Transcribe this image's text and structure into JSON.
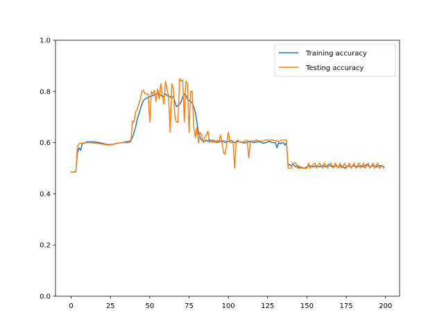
{
  "chart_data": {
    "type": "line",
    "title": "",
    "xlabel": "",
    "ylabel": "",
    "xlim": [
      -9.95,
      208.95
    ],
    "ylim": [
      0.0,
      1.0
    ],
    "xticks": [
      0,
      25,
      50,
      75,
      100,
      125,
      150,
      175,
      200
    ],
    "yticks": [
      0.0,
      0.2,
      0.4,
      0.6,
      0.8,
      1.0
    ],
    "xtick_labels": [
      "0",
      "25",
      "50",
      "75",
      "100",
      "125",
      "150",
      "175",
      "200"
    ],
    "ytick_labels": [
      "0.0",
      "0.2",
      "0.4",
      "0.6",
      "0.8",
      "1.0"
    ],
    "grid": false,
    "legend_position": "top-right",
    "series": [
      {
        "name": "Training accuracy",
        "color": "#1f77b4",
        "points": [
          [
            0,
            0.485
          ],
          [
            1,
            0.485
          ],
          [
            2,
            0.485
          ],
          [
            3,
            0.49
          ],
          [
            4,
            0.56
          ],
          [
            5,
            0.58
          ],
          [
            6,
            0.57
          ],
          [
            7,
            0.595
          ],
          [
            8,
            0.598
          ],
          [
            9,
            0.6
          ],
          [
            10,
            0.603
          ],
          [
            12,
            0.603
          ],
          [
            15,
            0.603
          ],
          [
            18,
            0.6
          ],
          [
            20,
            0.597
          ],
          [
            22,
            0.594
          ],
          [
            24,
            0.592
          ],
          [
            26,
            0.593
          ],
          [
            28,
            0.596
          ],
          [
            30,
            0.598
          ],
          [
            32,
            0.6
          ],
          [
            35,
            0.603
          ],
          [
            37,
            0.605
          ],
          [
            38,
            0.61
          ],
          [
            39,
            0.62
          ],
          [
            40,
            0.64
          ],
          [
            41,
            0.66
          ],
          [
            42,
            0.69
          ],
          [
            43,
            0.71
          ],
          [
            44,
            0.73
          ],
          [
            45,
            0.75
          ],
          [
            46,
            0.765
          ],
          [
            47,
            0.77
          ],
          [
            48,
            0.775
          ],
          [
            49,
            0.775
          ],
          [
            50,
            0.78
          ],
          [
            51,
            0.78
          ],
          [
            52,
            0.785
          ],
          [
            53,
            0.785
          ],
          [
            54,
            0.79
          ],
          [
            55,
            0.79
          ],
          [
            56,
            0.79
          ],
          [
            57,
            0.785
          ],
          [
            58,
            0.78
          ],
          [
            59,
            0.78
          ],
          [
            60,
            0.79
          ],
          [
            61,
            0.785
          ],
          [
            62,
            0.78
          ],
          [
            63,
            0.78
          ],
          [
            64,
            0.775
          ],
          [
            65,
            0.78
          ],
          [
            66,
            0.76
          ],
          [
            67,
            0.74
          ],
          [
            68,
            0.745
          ],
          [
            69,
            0.75
          ],
          [
            70,
            0.76
          ],
          [
            71,
            0.78
          ],
          [
            72,
            0.79
          ],
          [
            73,
            0.785
          ],
          [
            74,
            0.77
          ],
          [
            75,
            0.765
          ],
          [
            76,
            0.76
          ],
          [
            77,
            0.755
          ],
          [
            78,
            0.74
          ],
          [
            79,
            0.72
          ],
          [
            80,
            0.68
          ],
          [
            81,
            0.64
          ],
          [
            82,
            0.62
          ],
          [
            83,
            0.61
          ],
          [
            84,
            0.605
          ],
          [
            85,
            0.605
          ],
          [
            86,
            0.61
          ],
          [
            87,
            0.605
          ],
          [
            88,
            0.612
          ],
          [
            89,
            0.605
          ],
          [
            90,
            0.61
          ],
          [
            91,
            0.603
          ],
          [
            92,
            0.605
          ],
          [
            93,
            0.6
          ],
          [
            94,
            0.607
          ],
          [
            95,
            0.605
          ],
          [
            96,
            0.602
          ],
          [
            97,
            0.608
          ],
          [
            98,
            0.6
          ],
          [
            99,
            0.605
          ],
          [
            100,
            0.605
          ],
          [
            102,
            0.608
          ],
          [
            104,
            0.6
          ],
          [
            106,
            0.605
          ],
          [
            108,
            0.603
          ],
          [
            110,
            0.598
          ],
          [
            112,
            0.602
          ],
          [
            114,
            0.606
          ],
          [
            116,
            0.6
          ],
          [
            118,
            0.603
          ],
          [
            120,
            0.603
          ],
          [
            122,
            0.598
          ],
          [
            124,
            0.6
          ],
          [
            126,
            0.605
          ],
          [
            128,
            0.6
          ],
          [
            130,
            0.6
          ],
          [
            131,
            0.58
          ],
          [
            132,
            0.6
          ],
          [
            133,
            0.595
          ],
          [
            134,
            0.6
          ],
          [
            135,
            0.6
          ],
          [
            136,
            0.59
          ],
          [
            137,
            0.6
          ],
          [
            138,
            0.51
          ],
          [
            139,
            0.515
          ],
          [
            140,
            0.51
          ],
          [
            141,
            0.515
          ],
          [
            142,
            0.51
          ],
          [
            143,
            0.505
          ],
          [
            144,
            0.51
          ],
          [
            145,
            0.5
          ],
          [
            146,
            0.505
          ],
          [
            148,
            0.5
          ],
          [
            150,
            0.505
          ],
          [
            152,
            0.51
          ],
          [
            154,
            0.505
          ],
          [
            156,
            0.51
          ],
          [
            158,
            0.505
          ],
          [
            160,
            0.51
          ],
          [
            162,
            0.505
          ],
          [
            164,
            0.515
          ],
          [
            166,
            0.505
          ],
          [
            168,
            0.51
          ],
          [
            170,
            0.505
          ],
          [
            172,
            0.51
          ],
          [
            174,
            0.5
          ],
          [
            176,
            0.51
          ],
          [
            178,
            0.505
          ],
          [
            180,
            0.51
          ],
          [
            182,
            0.505
          ],
          [
            184,
            0.51
          ],
          [
            186,
            0.505
          ],
          [
            188,
            0.515
          ],
          [
            190,
            0.505
          ],
          [
            192,
            0.51
          ],
          [
            194,
            0.505
          ],
          [
            196,
            0.51
          ],
          [
            198,
            0.51
          ],
          [
            199,
            0.505
          ]
        ]
      },
      {
        "name": "Testing accuracy",
        "color": "#ff7f0e",
        "points": [
          [
            0,
            0.485
          ],
          [
            1,
            0.485
          ],
          [
            2,
            0.485
          ],
          [
            3,
            0.485
          ],
          [
            4,
            0.585
          ],
          [
            5,
            0.595
          ],
          [
            6,
            0.598
          ],
          [
            7,
            0.598
          ],
          [
            8,
            0.598
          ],
          [
            10,
            0.6
          ],
          [
            12,
            0.6
          ],
          [
            15,
            0.598
          ],
          [
            18,
            0.596
          ],
          [
            20,
            0.594
          ],
          [
            22,
            0.592
          ],
          [
            24,
            0.59
          ],
          [
            26,
            0.592
          ],
          [
            28,
            0.595
          ],
          [
            30,
            0.598
          ],
          [
            32,
            0.6
          ],
          [
            35,
            0.6
          ],
          [
            36,
            0.6
          ],
          [
            37,
            0.6
          ],
          [
            38,
            0.605
          ],
          [
            39,
            0.685
          ],
          [
            40,
            0.68
          ],
          [
            41,
            0.72
          ],
          [
            42,
            0.73
          ],
          [
            43,
            0.75
          ],
          [
            44,
            0.77
          ],
          [
            45,
            0.8
          ],
          [
            46,
            0.805
          ],
          [
            47,
            0.79
          ],
          [
            48,
            0.79
          ],
          [
            49,
            0.79
          ],
          [
            50,
            0.68
          ],
          [
            51,
            0.8
          ],
          [
            52,
            0.79
          ],
          [
            53,
            0.805
          ],
          [
            54,
            0.76
          ],
          [
            55,
            0.81
          ],
          [
            56,
            0.77
          ],
          [
            57,
            0.83
          ],
          [
            58,
            0.79
          ],
          [
            59,
            0.75
          ],
          [
            60,
            0.84
          ],
          [
            61,
            0.81
          ],
          [
            62,
            0.78
          ],
          [
            63,
            0.64
          ],
          [
            64,
            0.83
          ],
          [
            65,
            0.81
          ],
          [
            66,
            0.7
          ],
          [
            67,
            0.68
          ],
          [
            68,
            0.68
          ],
          [
            69,
            0.85
          ],
          [
            70,
            0.84
          ],
          [
            71,
            0.845
          ],
          [
            72,
            0.68
          ],
          [
            73,
            0.84
          ],
          [
            74,
            0.83
          ],
          [
            75,
            0.64
          ],
          [
            76,
            0.8
          ],
          [
            77,
            0.8
          ],
          [
            78,
            0.66
          ],
          [
            79,
            0.62
          ],
          [
            80,
            0.66
          ],
          [
            81,
            0.6
          ],
          [
            82,
            0.64
          ],
          [
            83,
            0.63
          ],
          [
            84,
            0.6
          ],
          [
            85,
            0.62
          ],
          [
            86,
            0.63
          ],
          [
            87,
            0.645
          ],
          [
            88,
            0.6
          ],
          [
            89,
            0.61
          ],
          [
            90,
            0.6
          ],
          [
            91,
            0.61
          ],
          [
            92,
            0.6
          ],
          [
            93,
            0.61
          ],
          [
            94,
            0.6
          ],
          [
            95,
            0.63
          ],
          [
            96,
            0.6
          ],
          [
            97,
            0.56
          ],
          [
            98,
            0.555
          ],
          [
            99,
            0.6
          ],
          [
            100,
            0.64
          ],
          [
            101,
            0.6
          ],
          [
            102,
            0.6
          ],
          [
            103,
            0.605
          ],
          [
            104,
            0.5
          ],
          [
            105,
            0.605
          ],
          [
            106,
            0.61
          ],
          [
            108,
            0.6
          ],
          [
            110,
            0.605
          ],
          [
            112,
            0.61
          ],
          [
            113,
            0.54
          ],
          [
            114,
            0.6
          ],
          [
            115,
            0.605
          ],
          [
            118,
            0.61
          ],
          [
            120,
            0.605
          ],
          [
            124,
            0.61
          ],
          [
            128,
            0.61
          ],
          [
            132,
            0.605
          ],
          [
            134,
            0.61
          ],
          [
            137,
            0.61
          ],
          [
            138,
            0.5
          ],
          [
            139,
            0.5
          ],
          [
            140,
            0.5
          ],
          [
            141,
            0.52
          ],
          [
            142,
            0.52
          ],
          [
            143,
            0.52
          ],
          [
            144,
            0.5
          ],
          [
            145,
            0.51
          ],
          [
            146,
            0.5
          ],
          [
            148,
            0.5
          ],
          [
            150,
            0.5
          ],
          [
            151,
            0.52
          ],
          [
            152,
            0.5
          ],
          [
            154,
            0.515
          ],
          [
            155,
            0.52
          ],
          [
            156,
            0.5
          ],
          [
            158,
            0.52
          ],
          [
            160,
            0.5
          ],
          [
            161,
            0.52
          ],
          [
            163,
            0.5
          ],
          [
            165,
            0.52
          ],
          [
            167,
            0.5
          ],
          [
            168,
            0.52
          ],
          [
            170,
            0.5
          ],
          [
            171,
            0.52
          ],
          [
            172,
            0.5
          ],
          [
            174,
            0.52
          ],
          [
            175,
            0.5
          ],
          [
            177,
            0.52
          ],
          [
            178,
            0.5
          ],
          [
            180,
            0.52
          ],
          [
            181,
            0.5
          ],
          [
            183,
            0.52
          ],
          [
            184,
            0.5
          ],
          [
            186,
            0.52
          ],
          [
            187,
            0.5
          ],
          [
            189,
            0.52
          ],
          [
            190,
            0.5
          ],
          [
            192,
            0.52
          ],
          [
            193,
            0.5
          ],
          [
            195,
            0.52
          ],
          [
            196,
            0.5
          ],
          [
            198,
            0.51
          ],
          [
            199,
            0.5
          ]
        ]
      }
    ]
  }
}
